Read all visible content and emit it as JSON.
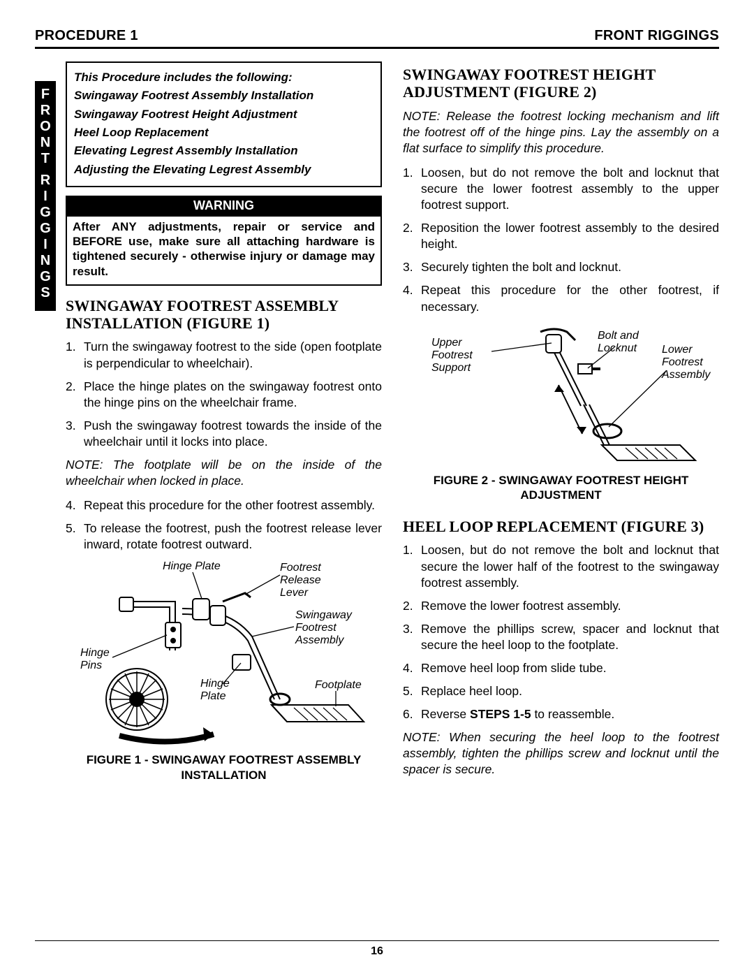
{
  "header": {
    "left": "PROCEDURE 1",
    "right": "FRONT RIGGINGS"
  },
  "side_tab": [
    "F",
    "R",
    "O",
    "N",
    "T",
    "",
    "R",
    "I",
    "G",
    "G",
    "I",
    "N",
    "G",
    "S"
  ],
  "proc_box": {
    "intro": "This Procedure includes the following:",
    "items": [
      "Swingaway Footrest Assembly Installation",
      "Swingaway Footrest Height Adjustment",
      "Heel Loop Replacement",
      "Elevating Legrest Assembly Installation",
      "Adjusting the Elevating Legrest Assembly"
    ]
  },
  "warning": {
    "title": "WARNING",
    "body": "After ANY adjustments, repair or service and BEFORE use, make sure all attaching hardware is tightened securely - otherwise injury or damage may result."
  },
  "section1": {
    "title": "SWINGAWAY FOOTREST ASSEMBLY INSTALLATION (FIGURE 1)",
    "steps": [
      "Turn the swingaway footrest to the side (open footplate is perpendicular to wheelchair).",
      "Place the hinge plates on the swingaway footrest onto the hinge pins on the wheelchair frame.",
      "Push the swingaway footrest towards the inside of the wheelchair until it locks into place."
    ],
    "note": "NOTE: The footplate will be on the inside of the wheelchair when locked in place.",
    "steps2": [
      "Repeat this procedure for the other footrest assembly.",
      "To release the footrest, push the footrest release lever inward, rotate footrest outward."
    ],
    "caption": "FIGURE 1 - SWINGAWAY FOOTREST ASSEMBLY INSTALLATION"
  },
  "section2": {
    "title": "SWINGAWAY FOOTREST HEIGHT ADJUSTMENT (FIGURE 2)",
    "note": "NOTE: Release the footrest locking mechanism and lift the footrest off of the hinge pins. Lay the assembly on a flat surface to simplify this procedure.",
    "steps": [
      "Loosen, but do not remove the bolt and locknut that secure the lower footrest assembly to the upper footrest support.",
      "Reposition the lower footrest assembly to the desired height.",
      "Securely tighten the bolt and locknut.",
      "Repeat this procedure for the other footrest, if necessary."
    ],
    "caption": "FIGURE 2 - SWINGAWAY FOOTREST HEIGHT ADJUSTMENT"
  },
  "section3": {
    "title": "HEEL LOOP REPLACEMENT (FIGURE 3)",
    "steps": [
      "Loosen, but do not remove the bolt and locknut that secure the lower half of the footrest to the swingaway footrest assembly.",
      "Remove the lower footrest assembly.",
      "Remove the phillips screw, spacer and locknut that secure the heel loop to the footplate.",
      "Remove heel loop from slide tube.",
      "Replace heel loop.",
      "Reverse STEPS 1-5 to reassemble."
    ],
    "note": "NOTE: When securing the heel loop to the footrest assembly, tighten the phillips screw and locknut until the spacer is secure."
  },
  "fig1_labels": {
    "hinge_plate_top": "Hinge Plate",
    "footrest_release": "Footrest Release Lever",
    "swingaway": "Swingaway Footrest Assembly",
    "hinge_pins": "Hinge Pins",
    "hinge_plate_btm": "Hinge Plate",
    "footplate": "Footplate"
  },
  "fig2_labels": {
    "upper": "Upper Footrest Support",
    "bolt": "Bolt and Locknut",
    "lower": "Lower Footrest Assembly"
  },
  "page_number": "16",
  "colors": {
    "black": "#000000",
    "white": "#ffffff"
  }
}
